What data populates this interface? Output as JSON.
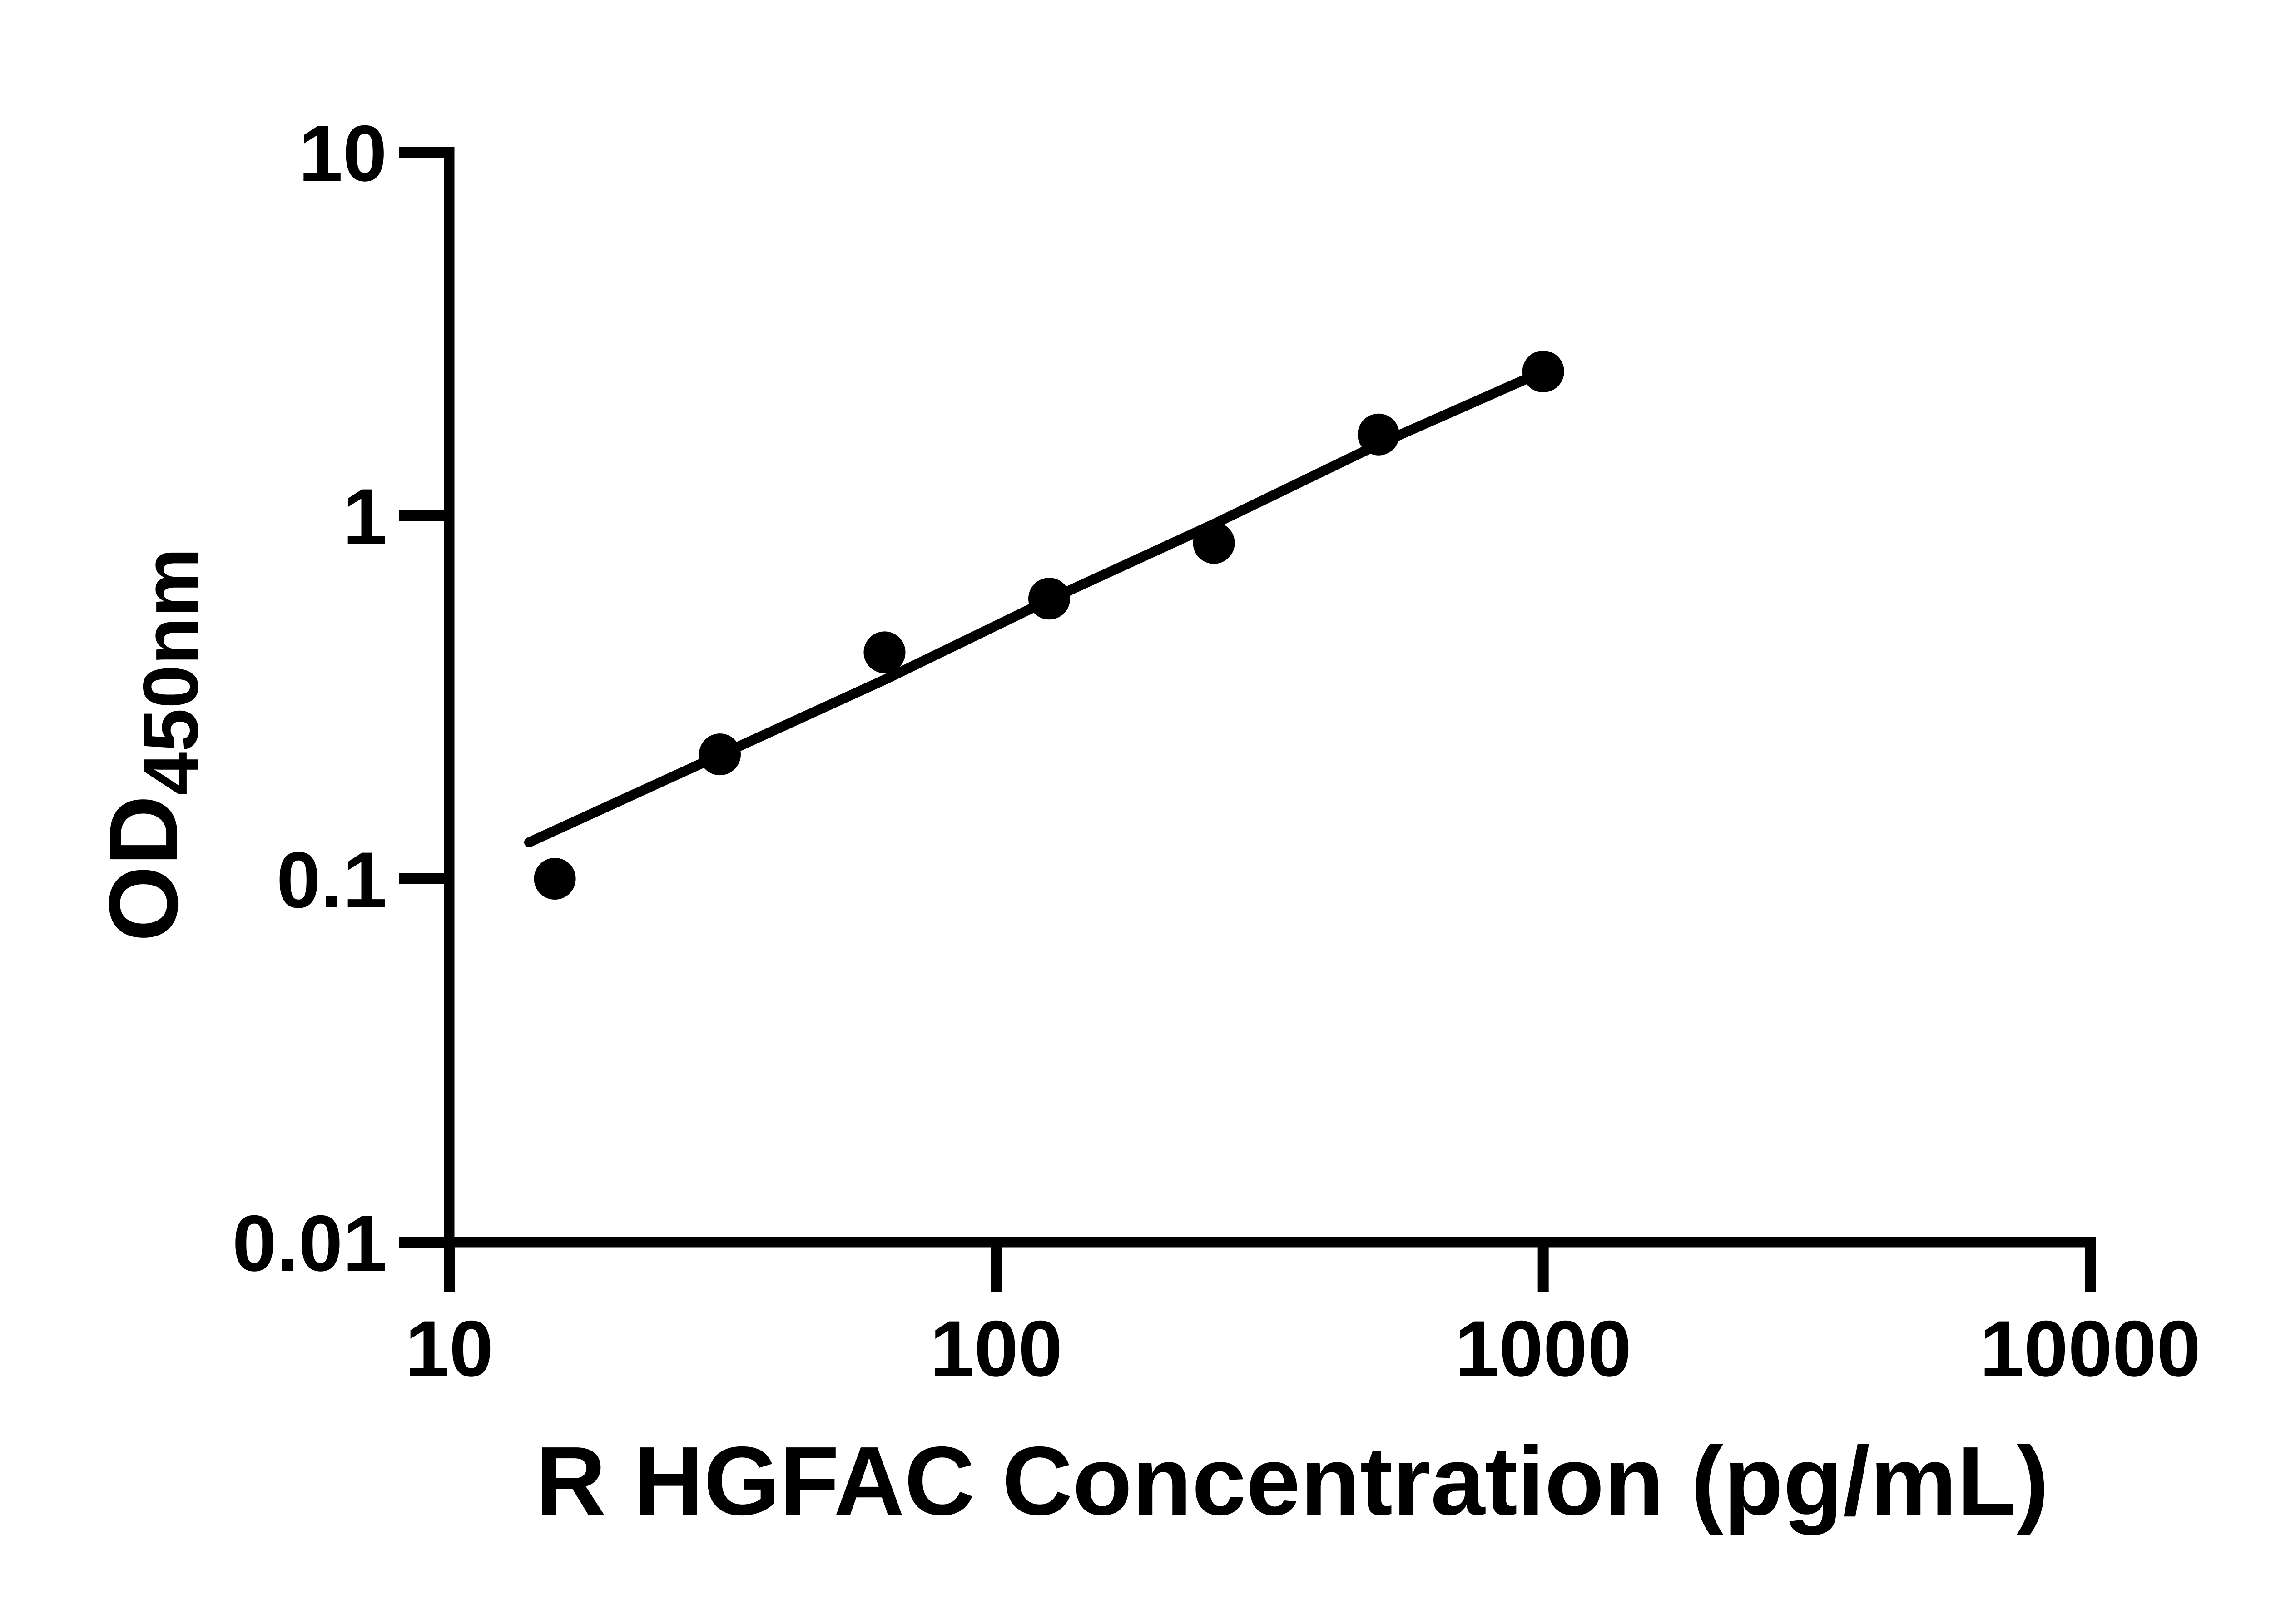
{
  "figure": {
    "background_color": "#ffffff",
    "ink_color": "#000000"
  },
  "chart_data": {
    "type": "scatter",
    "title": "",
    "xlabel": "R HGFAC Concentration (pg/mL)",
    "ylabel_main": "OD",
    "ylabel_sub": "450nm",
    "x_scale": "log",
    "y_scale": "log",
    "xlim": [
      10,
      10000
    ],
    "ylim": [
      0.01,
      10
    ],
    "x_ticks": [
      10,
      100,
      1000,
      10000
    ],
    "x_tick_labels": [
      "10",
      "100",
      "1000",
      "10000"
    ],
    "y_ticks": [
      10,
      1,
      0.1,
      0.01
    ],
    "y_tick_labels": [
      "10",
      "1",
      "0.1",
      "0.01"
    ],
    "grid": false,
    "legend": null,
    "marker": "filled-circle",
    "marker_color": "#000000",
    "line_color": "#000000",
    "series": [
      {
        "name": "standard-points",
        "kind": "scatter",
        "points": [
          {
            "x": 15.6,
            "y": 0.1
          },
          {
            "x": 31.25,
            "y": 0.22
          },
          {
            "x": 62.5,
            "y": 0.42
          },
          {
            "x": 125,
            "y": 0.59
          },
          {
            "x": 250,
            "y": 0.84
          },
          {
            "x": 500,
            "y": 1.67
          },
          {
            "x": 1000,
            "y": 2.49
          }
        ]
      },
      {
        "name": "fit-line",
        "kind": "line",
        "points": [
          {
            "x": 14.0,
            "y": 0.126
          },
          {
            "x": 31.25,
            "y": 0.219
          },
          {
            "x": 62.5,
            "y": 0.353
          },
          {
            "x": 125,
            "y": 0.586
          },
          {
            "x": 250,
            "y": 0.947
          },
          {
            "x": 500,
            "y": 1.57
          },
          {
            "x": 1000,
            "y": 2.49
          }
        ]
      }
    ]
  }
}
